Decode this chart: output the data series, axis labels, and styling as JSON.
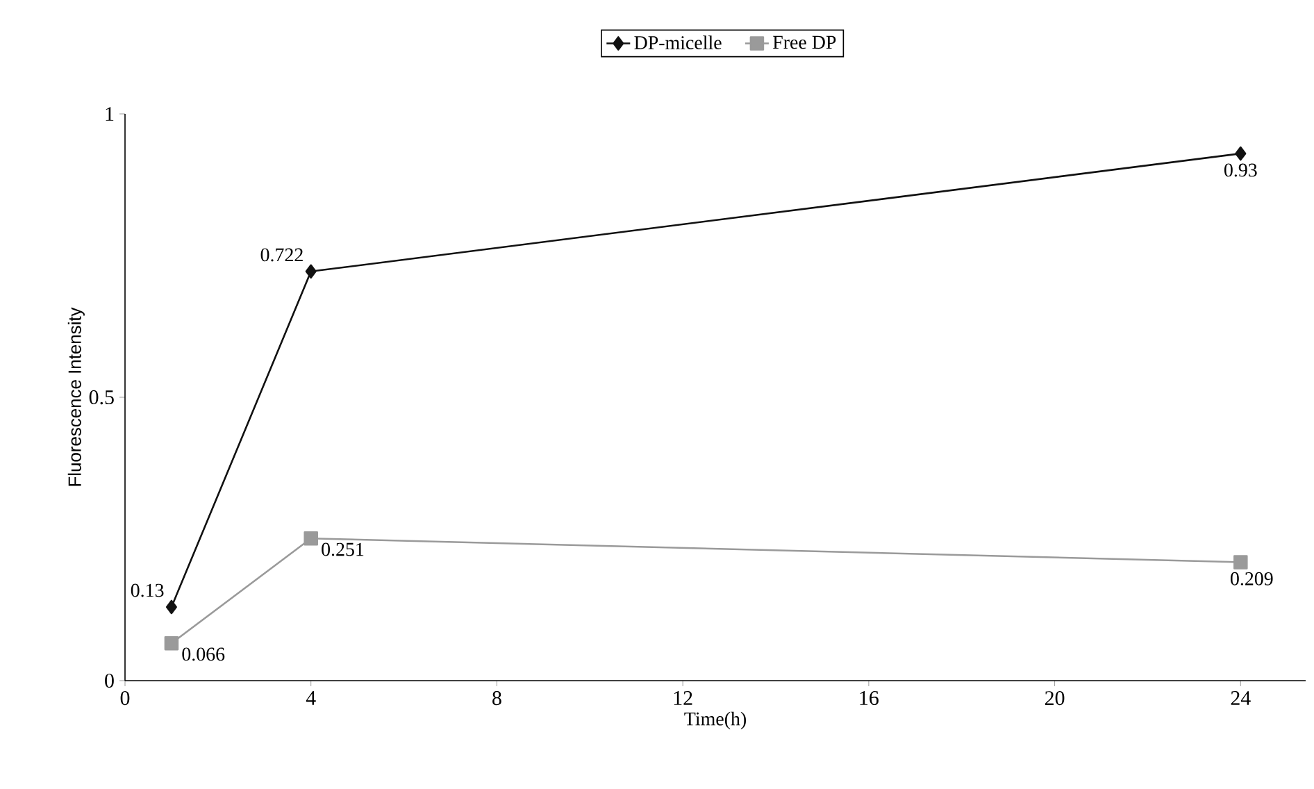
{
  "chart_data": {
    "type": "line",
    "xlabel": "Time(h)",
    "ylabel": "Fluorescence Intensity",
    "x": [
      1,
      4,
      24
    ],
    "series": [
      {
        "name": "DP-micelle",
        "color": "#111111",
        "marker": "diamond",
        "values": [
          0.13,
          0.722,
          0.93
        ]
      },
      {
        "name": "Free DP",
        "color": "#9a9a9a",
        "marker": "square",
        "values": [
          0.066,
          0.251,
          0.209
        ]
      }
    ],
    "xlim": [
      0,
      25.4
    ],
    "ylim": [
      0,
      1
    ],
    "xticks": [
      0,
      4,
      8,
      12,
      16,
      20,
      24
    ],
    "yticks": [
      0,
      0.5,
      1
    ],
    "data_labels": true,
    "legend": "top",
    "grid": false,
    "line_style": "solid"
  }
}
